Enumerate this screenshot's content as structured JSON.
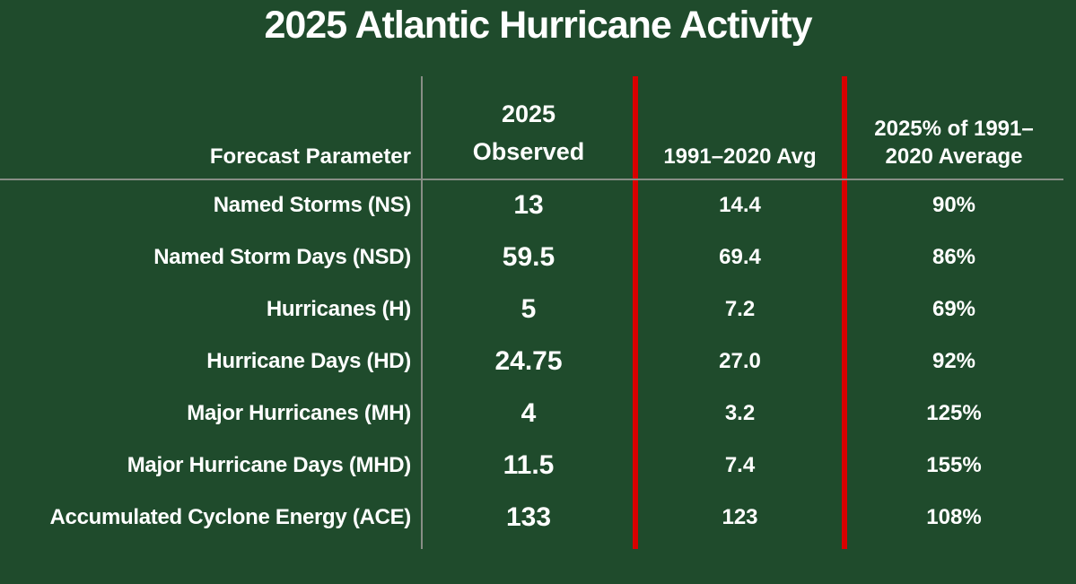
{
  "title": "2025 Atlantic Hurricane Activity",
  "table": {
    "headers": {
      "parameter": "Forecast Parameter",
      "observed": "2025\nObserved",
      "average": "1991–2020 Avg",
      "percent": "2025% of 1991–\n2020 Average"
    },
    "rows": [
      {
        "parameter": "Named Storms (NS)",
        "observed": "13",
        "average": "14.4",
        "percent": "90%"
      },
      {
        "parameter": "Named Storm Days (NSD)",
        "observed": "59.5",
        "average": "69.4",
        "percent": "86%"
      },
      {
        "parameter": "Hurricanes (H)",
        "observed": "5",
        "average": "7.2",
        "percent": "69%"
      },
      {
        "parameter": "Hurricane Days (HD)",
        "observed": "24.75",
        "average": "27.0",
        "percent": "92%"
      },
      {
        "parameter": "Major Hurricanes (MH)",
        "observed": "4",
        "average": "3.2",
        "percent": "125%"
      },
      {
        "parameter": "Major Hurricane Days (MHD)",
        "observed": "11.5",
        "average": "7.4",
        "percent": "155%"
      },
      {
        "parameter": "Accumulated Cyclone Energy (ACE)",
        "observed": "133",
        "average": "123",
        "percent": "108%"
      }
    ]
  },
  "colors": {
    "background": "#1f4b2c",
    "text": "#ffffff",
    "divider_red": "#d80000",
    "divider_gray": "#888e86"
  },
  "chart_data": {
    "type": "table",
    "title": "2025 Atlantic Hurricane Activity",
    "columns": [
      "Forecast Parameter",
      "2025 Observed",
      "1991–2020 Avg",
      "2025% of 1991–2020 Average"
    ],
    "rows": [
      [
        "Named Storms (NS)",
        "13",
        "14.4",
        "90%"
      ],
      [
        "Named Storm Days (NSD)",
        "59.5",
        "69.4",
        "86%"
      ],
      [
        "Hurricanes (H)",
        "5",
        "7.2",
        "69%"
      ],
      [
        "Hurricane Days (HD)",
        "24.75",
        "27.0",
        "92%"
      ],
      [
        "Major Hurricanes (MH)",
        "4",
        "3.2",
        "125%"
      ],
      [
        "Major Hurricane Days (MHD)",
        "11.5",
        "7.4",
        "155%"
      ],
      [
        "Accumulated Cyclone Energy (ACE)",
        "133",
        "123",
        "108%"
      ]
    ]
  }
}
